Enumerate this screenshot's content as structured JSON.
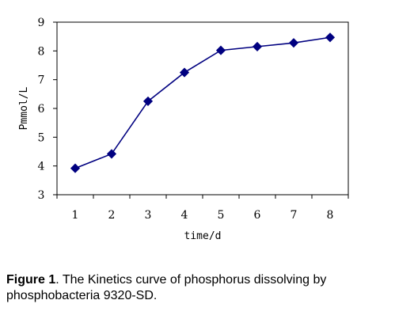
{
  "chart_data": {
    "type": "line",
    "title": "",
    "xlabel": "time/d",
    "ylabel": "Pmmol/L",
    "x": [
      1,
      2,
      3,
      4,
      5,
      6,
      7,
      8
    ],
    "x_tick_labels": [
      "1",
      "2",
      "3",
      "4",
      "5",
      "6",
      "7",
      "8"
    ],
    "y_tick_labels": [
      "3",
      "4",
      "5",
      "6",
      "7",
      "8",
      "9"
    ],
    "ylim": [
      3,
      9
    ],
    "series": [
      {
        "values": [
          3.92,
          4.42,
          6.25,
          7.25,
          8.02,
          8.15,
          8.28,
          8.47
        ],
        "color": "#000080",
        "marker": "diamond"
      }
    ],
    "grid": false,
    "legend": "none"
  },
  "caption": {
    "label": "Figure 1",
    "text": ". The Kinetics curve of phosphorus dissolving by phosphobacteria 9320-SD."
  }
}
